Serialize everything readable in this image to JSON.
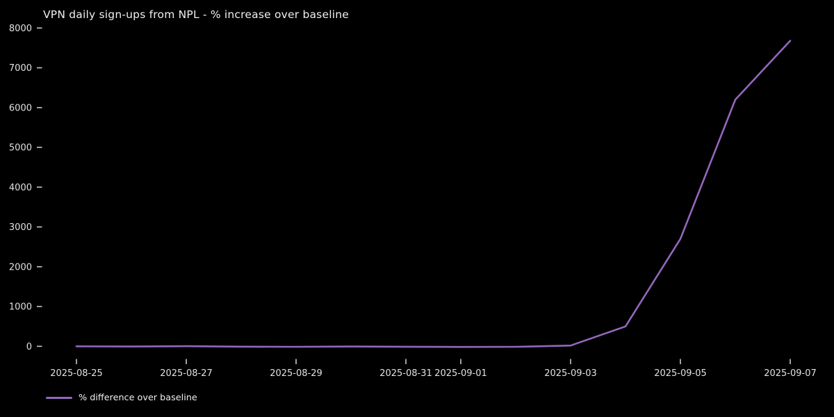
{
  "window": {
    "background_color": "#000000"
  },
  "chart_data": {
    "type": "line",
    "title": "VPN daily sign-ups from NPL - % increase over baseline",
    "xlabel": "",
    "ylabel": "",
    "grid": false,
    "background_color": "#000000",
    "text_color": "#e2e2e2",
    "line_color": "#9467bd",
    "legend_label": "% difference over baseline",
    "legend_position": "lower-left",
    "x": [
      "2025-08-25",
      "2025-08-26",
      "2025-08-27",
      "2025-08-28",
      "2025-08-29",
      "2025-08-30",
      "2025-08-31",
      "2025-09-01",
      "2025-09-02",
      "2025-09-03",
      "2025-09-04",
      "2025-09-05",
      "2025-09-06",
      "2025-09-07"
    ],
    "series": [
      {
        "name": "% difference over baseline",
        "values": [
          0,
          -5,
          3,
          -8,
          -12,
          -6,
          -10,
          -15,
          -12,
          20,
          500,
          2700,
          6200,
          7680
        ]
      }
    ],
    "x_tick_labels": [
      "2025-08-25",
      "2025-08-27",
      "2025-08-29",
      "2025-08-31",
      "2025-09-01",
      "2025-09-03",
      "2025-09-05",
      "2025-09-07"
    ],
    "y_ticks": [
      0,
      1000,
      2000,
      3000,
      4000,
      5000,
      6000,
      7000,
      8000
    ],
    "ylim": [
      -390,
      8090
    ]
  }
}
